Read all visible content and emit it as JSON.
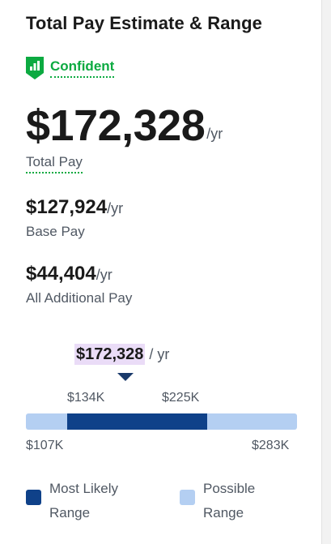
{
  "header": {
    "title": "Total Pay Estimate & Range"
  },
  "confidence": {
    "label": "Confident",
    "color": "#0caa41",
    "icon": "bar-chart-shield-icon"
  },
  "total_pay": {
    "value": "$172,328",
    "unit": "/yr",
    "label": "Total Pay"
  },
  "base_pay": {
    "value": "$127,924",
    "unit": "/yr",
    "label": "Base Pay"
  },
  "additional_pay": {
    "value": "$44,404",
    "unit": "/yr",
    "label": "All Additional Pay"
  },
  "range_chart": {
    "marker_value": "$172,328",
    "marker_unit": "/ yr",
    "likely_low": "$134K",
    "likely_high": "$225K",
    "possible_low": "$107K",
    "possible_high": "$283K",
    "colors": {
      "likely": "#0f4189",
      "possible": "#b4cff2",
      "marker_highlight": "#eadcf7"
    }
  },
  "legend": {
    "likely_label_line1": "Most Likely",
    "likely_label_line2": "Range",
    "possible_label_line1": "Possible",
    "possible_label_line2": "Range"
  }
}
